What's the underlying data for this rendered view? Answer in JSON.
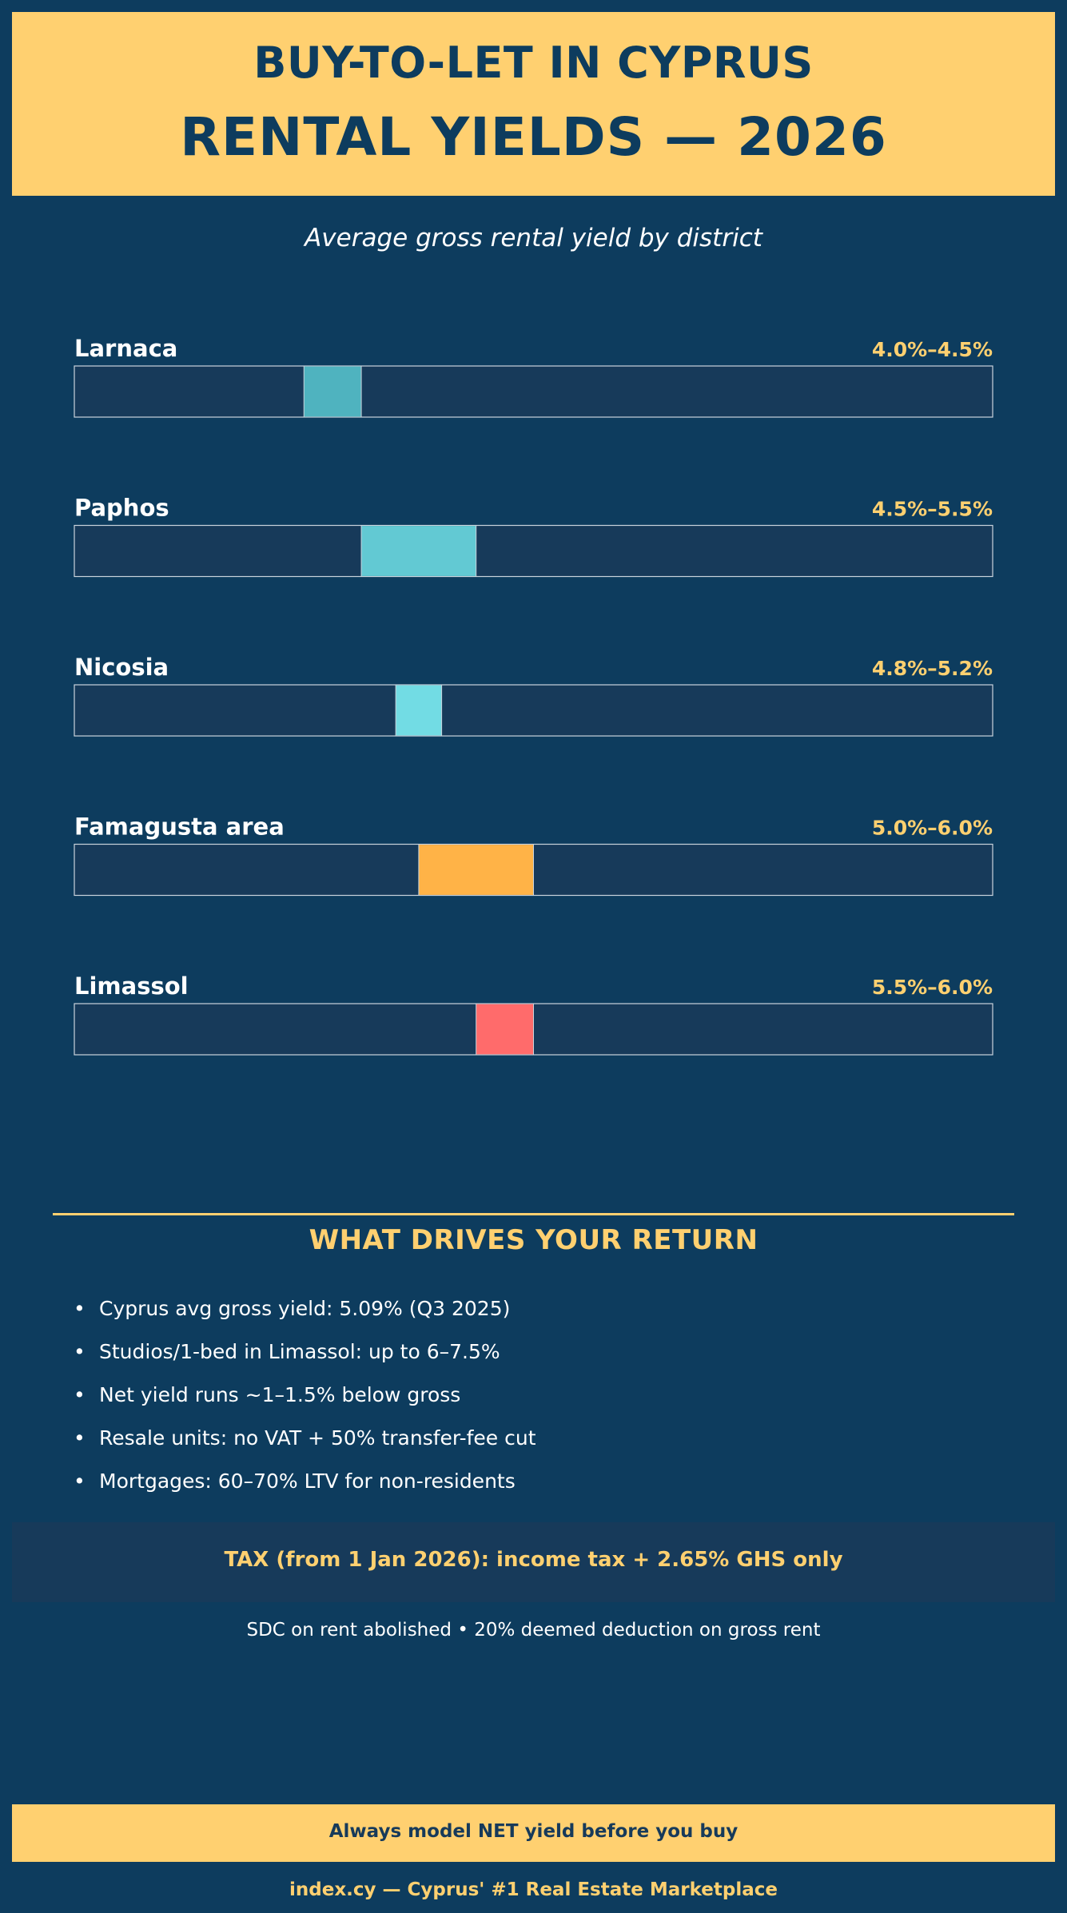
{
  "header": {
    "line1": "BUY-TO-LET IN CYPRUS",
    "line2": "RENTAL YIELDS — 2026"
  },
  "subtitle": "Average gross rental yield by district",
  "chart_data": {
    "type": "bar",
    "subtype": "range",
    "xlim": [
      2.0,
      10.0
    ],
    "categories": [
      "Larnaca",
      "Paphos",
      "Nicosia",
      "Famagusta area",
      "Limassol"
    ],
    "ranges": [
      {
        "low": 4.0,
        "high": 4.5,
        "label": "4.0%–4.5%",
        "color": "#4fb3bf"
      },
      {
        "low": 4.5,
        "high": 5.5,
        "label": "4.5%–5.5%",
        "color": "#62c9d3"
      },
      {
        "low": 4.8,
        "high": 5.2,
        "label": "4.8%–5.2%",
        "color": "#72dce4"
      },
      {
        "low": 5.0,
        "high": 6.0,
        "label": "5.0%–6.0%",
        "color": "#ffb347"
      },
      {
        "low": 5.5,
        "high": 6.0,
        "label": "5.5%–6.0%",
        "color": "#ff6b6b"
      }
    ],
    "track_color": "#173a5a",
    "label_color": "#ffffff",
    "value_label_color": "#ffd070"
  },
  "drivers": {
    "title": "WHAT DRIVES YOUR RETURN",
    "bullet": "•",
    "items": [
      "Cyprus avg gross yield: 5.09% (Q3 2025)",
      "Studios/1-bed in Limassol: up to 6–7.5%",
      "Net yield runs ~1–1.5% below gross",
      "Resale units: no VAT + 50% transfer-fee cut",
      "Mortgages: 60–70% LTV for non-residents"
    ]
  },
  "tax": {
    "headline": "TAX (from 1 Jan 2026): income tax + 2.65% GHS only",
    "note": "SDC on rent abolished • 20% deemed deduction on gross rent"
  },
  "footer": {
    "cta": "Always model NET yield before you buy",
    "site": "index.cy — Cyprus' #1 Real Estate Marketplace"
  }
}
